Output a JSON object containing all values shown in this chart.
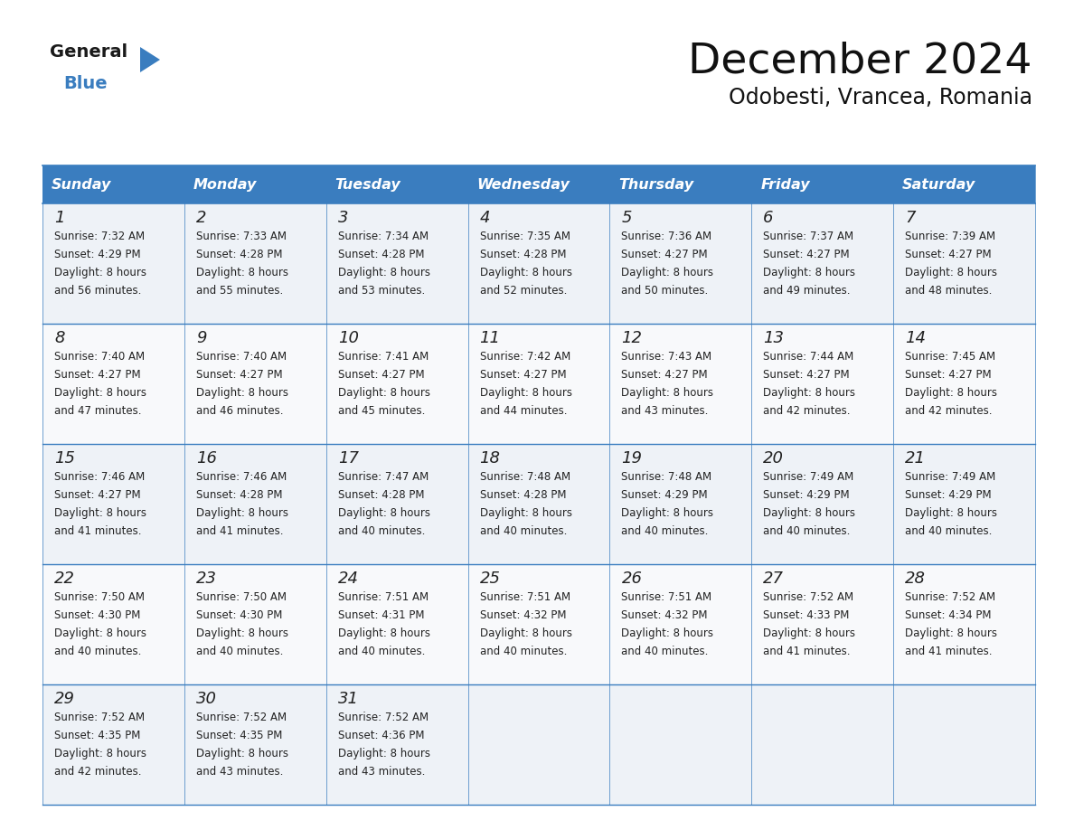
{
  "title": "December 2024",
  "subtitle": "Odobesti, Vrancea, Romania",
  "header_color": "#3a7dbf",
  "header_text_color": "#ffffff",
  "cell_bg_even": "#eef2f7",
  "cell_bg_odd": "#f8f9fb",
  "border_color": "#3a7dbf",
  "text_color": "#222222",
  "days_of_week": [
    "Sunday",
    "Monday",
    "Tuesday",
    "Wednesday",
    "Thursday",
    "Friday",
    "Saturday"
  ],
  "weeks": [
    [
      {
        "day": 1,
        "sunrise": "7:32 AM",
        "sunset": "4:29 PM",
        "daylight_mins": "56 minutes."
      },
      {
        "day": 2,
        "sunrise": "7:33 AM",
        "sunset": "4:28 PM",
        "daylight_mins": "55 minutes."
      },
      {
        "day": 3,
        "sunrise": "7:34 AM",
        "sunset": "4:28 PM",
        "daylight_mins": "53 minutes."
      },
      {
        "day": 4,
        "sunrise": "7:35 AM",
        "sunset": "4:28 PM",
        "daylight_mins": "52 minutes."
      },
      {
        "day": 5,
        "sunrise": "7:36 AM",
        "sunset": "4:27 PM",
        "daylight_mins": "50 minutes."
      },
      {
        "day": 6,
        "sunrise": "7:37 AM",
        "sunset": "4:27 PM",
        "daylight_mins": "49 minutes."
      },
      {
        "day": 7,
        "sunrise": "7:39 AM",
        "sunset": "4:27 PM",
        "daylight_mins": "48 minutes."
      }
    ],
    [
      {
        "day": 8,
        "sunrise": "7:40 AM",
        "sunset": "4:27 PM",
        "daylight_mins": "47 minutes."
      },
      {
        "day": 9,
        "sunrise": "7:40 AM",
        "sunset": "4:27 PM",
        "daylight_mins": "46 minutes."
      },
      {
        "day": 10,
        "sunrise": "7:41 AM",
        "sunset": "4:27 PM",
        "daylight_mins": "45 minutes."
      },
      {
        "day": 11,
        "sunrise": "7:42 AM",
        "sunset": "4:27 PM",
        "daylight_mins": "44 minutes."
      },
      {
        "day": 12,
        "sunrise": "7:43 AM",
        "sunset": "4:27 PM",
        "daylight_mins": "43 minutes."
      },
      {
        "day": 13,
        "sunrise": "7:44 AM",
        "sunset": "4:27 PM",
        "daylight_mins": "42 minutes."
      },
      {
        "day": 14,
        "sunrise": "7:45 AM",
        "sunset": "4:27 PM",
        "daylight_mins": "42 minutes."
      }
    ],
    [
      {
        "day": 15,
        "sunrise": "7:46 AM",
        "sunset": "4:27 PM",
        "daylight_mins": "41 minutes."
      },
      {
        "day": 16,
        "sunrise": "7:46 AM",
        "sunset": "4:28 PM",
        "daylight_mins": "41 minutes."
      },
      {
        "day": 17,
        "sunrise": "7:47 AM",
        "sunset": "4:28 PM",
        "daylight_mins": "40 minutes."
      },
      {
        "day": 18,
        "sunrise": "7:48 AM",
        "sunset": "4:28 PM",
        "daylight_mins": "40 minutes."
      },
      {
        "day": 19,
        "sunrise": "7:48 AM",
        "sunset": "4:29 PM",
        "daylight_mins": "40 minutes."
      },
      {
        "day": 20,
        "sunrise": "7:49 AM",
        "sunset": "4:29 PM",
        "daylight_mins": "40 minutes."
      },
      {
        "day": 21,
        "sunrise": "7:49 AM",
        "sunset": "4:29 PM",
        "daylight_mins": "40 minutes."
      }
    ],
    [
      {
        "day": 22,
        "sunrise": "7:50 AM",
        "sunset": "4:30 PM",
        "daylight_mins": "40 minutes."
      },
      {
        "day": 23,
        "sunrise": "7:50 AM",
        "sunset": "4:30 PM",
        "daylight_mins": "40 minutes."
      },
      {
        "day": 24,
        "sunrise": "7:51 AM",
        "sunset": "4:31 PM",
        "daylight_mins": "40 minutes."
      },
      {
        "day": 25,
        "sunrise": "7:51 AM",
        "sunset": "4:32 PM",
        "daylight_mins": "40 minutes."
      },
      {
        "day": 26,
        "sunrise": "7:51 AM",
        "sunset": "4:32 PM",
        "daylight_mins": "40 minutes."
      },
      {
        "day": 27,
        "sunrise": "7:52 AM",
        "sunset": "4:33 PM",
        "daylight_mins": "41 minutes."
      },
      {
        "day": 28,
        "sunrise": "7:52 AM",
        "sunset": "4:34 PM",
        "daylight_mins": "41 minutes."
      }
    ],
    [
      {
        "day": 29,
        "sunrise": "7:52 AM",
        "sunset": "4:35 PM",
        "daylight_mins": "42 minutes."
      },
      {
        "day": 30,
        "sunrise": "7:52 AM",
        "sunset": "4:35 PM",
        "daylight_mins": "43 minutes."
      },
      {
        "day": 31,
        "sunrise": "7:52 AM",
        "sunset": "4:36 PM",
        "daylight_mins": "43 minutes."
      },
      null,
      null,
      null,
      null
    ]
  ],
  "logo_general_color": "#1a1a1a",
  "logo_blue_color": "#3a7dbf",
  "logo_triangle_color": "#3a7dbf"
}
